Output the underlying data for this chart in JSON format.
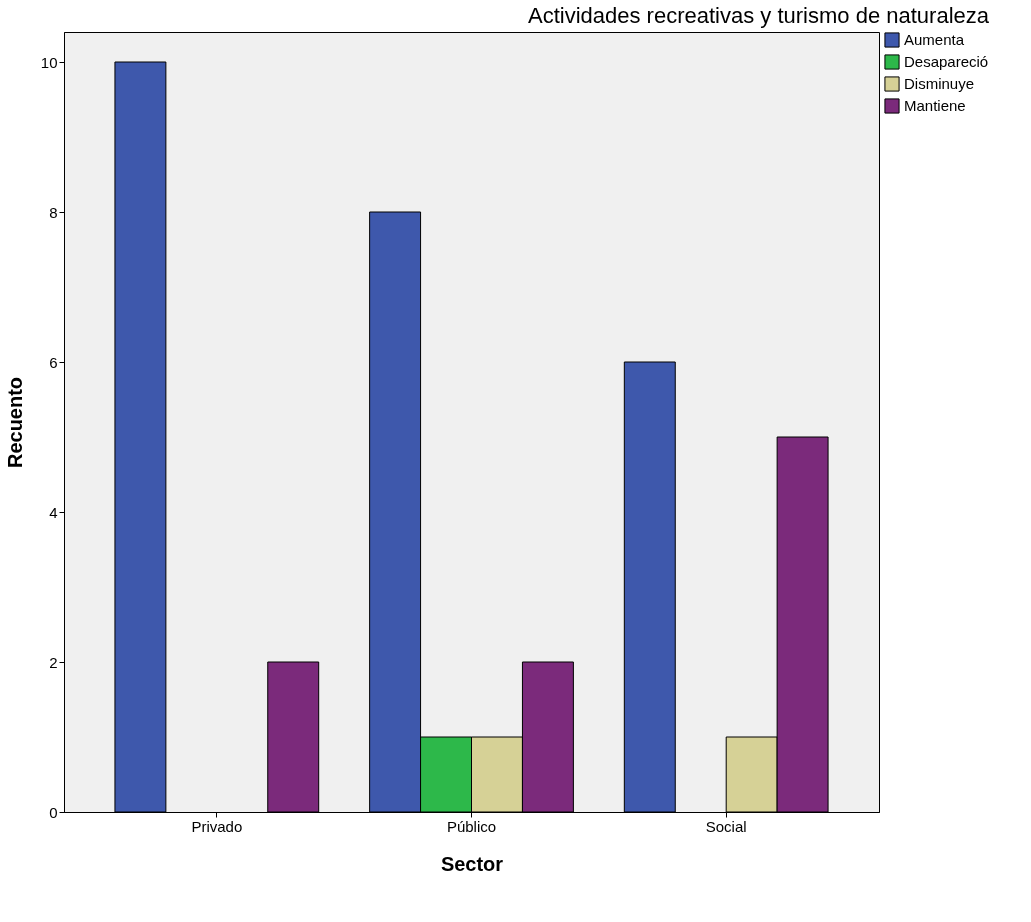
{
  "chart_data": {
    "type": "bar",
    "title": "Actividades recreativas y turismo de naturaleza",
    "xlabel": "Sector",
    "ylabel": "Recuento",
    "categories": [
      "Privado",
      "Público",
      "Social"
    ],
    "series": [
      {
        "name": "Aumenta",
        "color": "#3e58ac",
        "values": [
          10,
          8,
          6
        ]
      },
      {
        "name": "Desapareció",
        "color": "#2db84a",
        "values": [
          null,
          1,
          null
        ]
      },
      {
        "name": "Disminuye",
        "color": "#d6d196",
        "values": [
          null,
          1,
          1
        ]
      },
      {
        "name": "Mantiene",
        "color": "#7b2a7b",
        "values": [
          2,
          2,
          5
        ]
      }
    ],
    "ylim": [
      0,
      10.4
    ],
    "yticks": [
      0,
      2,
      4,
      6,
      8,
      10
    ],
    "grid": false,
    "legend": "top right"
  }
}
